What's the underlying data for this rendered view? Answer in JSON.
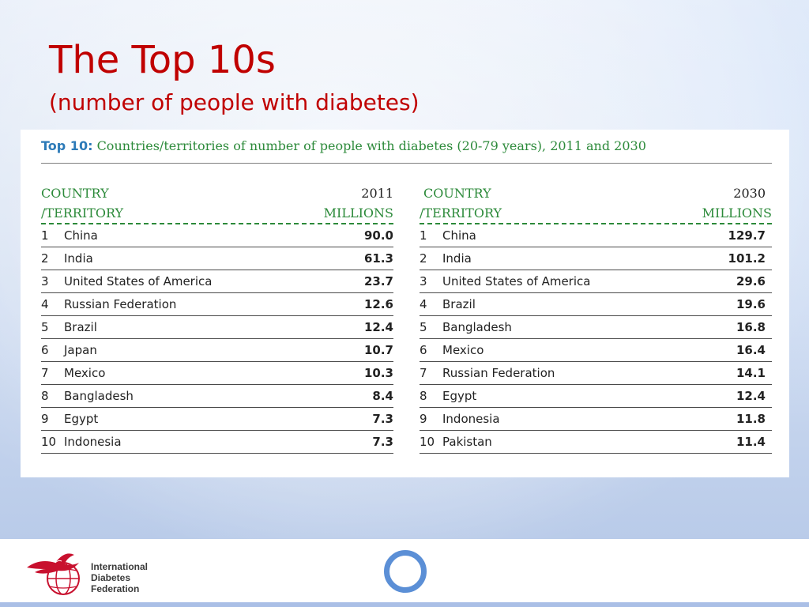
{
  "slide": {
    "title": "The Top 10s",
    "subtitle": "(number of people with diabetes)"
  },
  "panel": {
    "heading_lead": "Top 10:",
    "heading_rest": "Countries/territories of number of people with diabetes (20-79 years), 2011 and 2030"
  },
  "table_2011": {
    "header_country_1": "COUNTRY",
    "header_country_2": "/TERRITORY",
    "header_year": "2011",
    "header_unit": "MILLIONS",
    "rows": [
      {
        "rank": "1",
        "name": "China",
        "value": "90.0"
      },
      {
        "rank": "2",
        "name": "India",
        "value": "61.3"
      },
      {
        "rank": "3",
        "name": "United States of America",
        "value": "23.7"
      },
      {
        "rank": "4",
        "name": "Russian Federation",
        "value": "12.6"
      },
      {
        "rank": "5",
        "name": "Brazil",
        "value": "12.4"
      },
      {
        "rank": "6",
        "name": "Japan",
        "value": "10.7"
      },
      {
        "rank": "7",
        "name": "Mexico",
        "value": "10.3"
      },
      {
        "rank": "8",
        "name": "Bangladesh",
        "value": "8.4"
      },
      {
        "rank": "9",
        "name": "Egypt",
        "value": "7.3"
      },
      {
        "rank": "10",
        "name": "Indonesia",
        "value": "7.3"
      }
    ]
  },
  "table_2030": {
    "header_country_1": "COUNTRY",
    "header_country_2": "/TERRITORY",
    "header_year": "2030",
    "header_unit": "MILLIONS",
    "rows": [
      {
        "rank": "1",
        "name": "China",
        "value": "129.7"
      },
      {
        "rank": "2",
        "name": "India",
        "value": "101.2"
      },
      {
        "rank": "3",
        "name": "United States of America",
        "value": "29.6"
      },
      {
        "rank": "4",
        "name": "Brazil",
        "value": "19.6"
      },
      {
        "rank": "5",
        "name": "Bangladesh",
        "value": "16.8"
      },
      {
        "rank": "6",
        "name": "Mexico",
        "value": "16.4"
      },
      {
        "rank": "7",
        "name": "Russian Federation",
        "value": "14.1"
      },
      {
        "rank": "8",
        "name": "Egypt",
        "value": "12.4"
      },
      {
        "rank": "9",
        "name": "Indonesia",
        "value": "11.8"
      },
      {
        "rank": "10",
        "name": "Pakistan",
        "value": "11.4"
      }
    ]
  },
  "footer": {
    "logo_icon": "idf-bird-globe-icon",
    "logo_line1": "International",
    "logo_line2": "Diabetes",
    "logo_line3": "Federation",
    "circle_icon": "blue-circle-icon"
  },
  "colors": {
    "title": "#c00000",
    "table_header": "#2c8a3a",
    "heading_lead": "#2c7ab8",
    "circle": "#5b8fd6",
    "logo_red": "#c8102e"
  }
}
